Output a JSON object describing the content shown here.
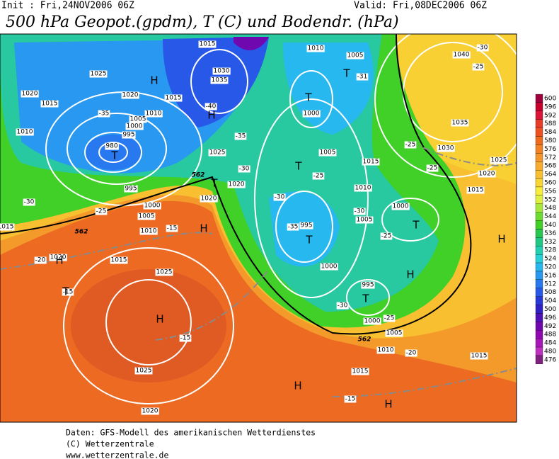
{
  "header": {
    "init": "Init : Fri,24NOV2006 06Z",
    "valid": "Valid: Fri,08DEC2006 06Z",
    "title": "500 hPa Geopot.(gpdm), T (C) und Bodendr. (hPa)"
  },
  "footer": [
    "Daten: GFS-Modell des amerikanischen Wetterdienstes",
    "(C) Wetterzentrale",
    "www.wetterzentrale.de"
  ],
  "colorbar": {
    "labels": [
      "600",
      "596",
      "592",
      "588",
      "584",
      "580",
      "576",
      "572",
      "568",
      "564",
      "560",
      "556",
      "552",
      "548",
      "544",
      "540",
      "536",
      "532",
      "528",
      "524",
      "520",
      "516",
      "512",
      "508",
      "504",
      "500",
      "496",
      "492",
      "488",
      "484",
      "480",
      "476"
    ],
    "colors": [
      "#a0003c",
      "#c8002c",
      "#dc1438",
      "#e83c28",
      "#ee5020",
      "#f06a1e",
      "#f28224",
      "#f4962a",
      "#f8ab2c",
      "#f8c030",
      "#fad634",
      "#f8ec3c",
      "#e0f040",
      "#a8e83c",
      "#6cdc30",
      "#40d028",
      "#28c850",
      "#20c884",
      "#20d0b0",
      "#28d0d8",
      "#28b8f0",
      "#2898f0",
      "#2878f0",
      "#2858e8",
      "#2838d8",
      "#3020c8",
      "#5010b8",
      "#7008b0",
      "#9008b0",
      "#a818b8",
      "#c030c0",
      "#802080"
    ]
  },
  "map": {
    "pressure_labels": [
      "1015",
      "1010",
      "1005",
      "1025",
      "1030",
      "1035",
      "1020",
      "1020",
      "1015",
      "1015",
      "1010",
      "1005",
      "1000",
      "995",
      "980",
      "1010",
      "1025",
      "1020",
      "1020",
      "1000",
      "1005",
      "1010",
      "995",
      "1015",
      "1020",
      "1025",
      "1025",
      "1020",
      "1000",
      "1005",
      "1015",
      "1010",
      "1000",
      "1005",
      "995",
      "1000",
      "995",
      "1000",
      "1005",
      "1010",
      "1015",
      "1015",
      "1020",
      "1025",
      "1030",
      "1035",
      "1040",
      "1015",
      "1015"
    ],
    "temperature_labels": [
      "-30",
      "-25",
      "-20",
      "-15",
      "-15",
      "-15",
      "-30",
      "-35",
      "-40",
      "-35",
      "-30",
      "-25",
      "-30",
      "-25",
      "-35",
      "-30",
      "-25",
      "-20",
      "-15",
      "-25",
      "-25",
      "-25",
      "-30",
      "-31"
    ],
    "centers": [
      "H",
      "H",
      "T",
      "T",
      "T",
      "T",
      "T",
      "H",
      "T",
      "T",
      "H",
      "H",
      "T",
      "H",
      "T",
      "H",
      "H",
      "H"
    ],
    "height_labels": [
      "562",
      "562",
      "562"
    ]
  }
}
